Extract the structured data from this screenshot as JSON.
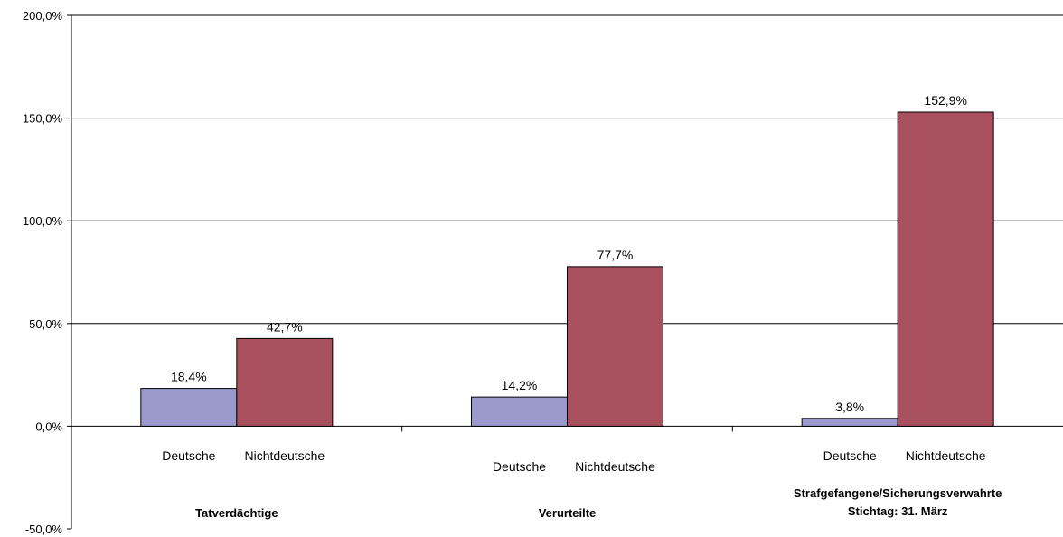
{
  "chart_data": {
    "type": "bar",
    "ylim": [
      -50,
      200
    ],
    "yticks": [
      "-50,0%",
      "0,0%",
      "50,0%",
      "100,0%",
      "150,0%",
      "200,0%"
    ],
    "ytick_values": [
      -50,
      0,
      50,
      100,
      150,
      200
    ],
    "gridlines": true,
    "colors": {
      "Deutsche": "#9999cc",
      "Nichtdeutsche": "#a8505e"
    },
    "groups": [
      {
        "label_lines": [
          "Tatverdächtige"
        ],
        "bars": [
          {
            "label": "Deutsche",
            "value": 18.4,
            "value_label": "18,4%"
          },
          {
            "label": "Nichtdeutsche",
            "value": 42.7,
            "value_label": "42,7%"
          }
        ]
      },
      {
        "label_lines": [
          "Verurteilte"
        ],
        "bars": [
          {
            "label": "Deutsche",
            "value": 14.2,
            "value_label": "14,2%"
          },
          {
            "label": "Nichtdeutsche",
            "value": 77.7,
            "value_label": "77,7%"
          }
        ]
      },
      {
        "label_lines": [
          "Strafgefangene/Sicherungsverwahrte",
          "Stichtag: 31. März"
        ],
        "bars": [
          {
            "label": "Deutsche",
            "value": 3.8,
            "value_label": "3,8%"
          },
          {
            "label": "Nichtdeutsche",
            "value": 152.9,
            "value_label": "152,9%"
          }
        ]
      }
    ]
  }
}
